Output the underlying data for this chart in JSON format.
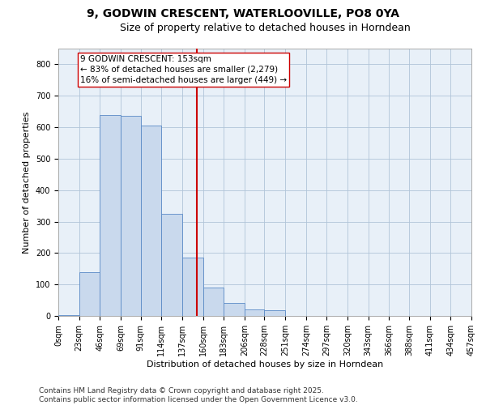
{
  "title_line1": "9, GODWIN CRESCENT, WATERLOOVILLE, PO8 0YA",
  "title_line2": "Size of property relative to detached houses in Horndean",
  "xlabel": "Distribution of detached houses by size in Horndean",
  "ylabel": "Number of detached properties",
  "bins": [
    "0sqm",
    "23sqm",
    "46sqm",
    "69sqm",
    "91sqm",
    "114sqm",
    "137sqm",
    "160sqm",
    "183sqm",
    "206sqm",
    "228sqm",
    "251sqm",
    "274sqm",
    "297sqm",
    "320sqm",
    "343sqm",
    "366sqm",
    "388sqm",
    "411sqm",
    "434sqm",
    "457sqm"
  ],
  "bin_edges": [
    0,
    23,
    46,
    69,
    91,
    114,
    137,
    160,
    183,
    206,
    228,
    251,
    274,
    297,
    320,
    343,
    366,
    388,
    411,
    434,
    457
  ],
  "bar_heights": [
    2,
    140,
    640,
    635,
    605,
    325,
    185,
    90,
    42,
    20,
    18,
    0,
    0,
    0,
    0,
    0,
    0,
    0,
    0,
    0
  ],
  "bar_color": "#c9d9ed",
  "bar_edge_color": "#5a8ac6",
  "vline_x": 153,
  "vline_color": "#cc0000",
  "annotation_text": "9 GODWIN CRESCENT: 153sqm\n← 83% of detached houses are smaller (2,279)\n16% of semi-detached houses are larger (449) →",
  "annotation_box_color": "#ffffff",
  "annotation_box_edge": "#cc0000",
  "ylim": [
    0,
    850
  ],
  "yticks": [
    0,
    100,
    200,
    300,
    400,
    500,
    600,
    700,
    800
  ],
  "grid_color": "#b0c4d8",
  "bg_color": "#e8f0f8",
  "footer": "Contains HM Land Registry data © Crown copyright and database right 2025.\nContains public sector information licensed under the Open Government Licence v3.0.",
  "title_fontsize": 10,
  "subtitle_fontsize": 9,
  "axis_label_fontsize": 8,
  "tick_fontsize": 7,
  "annotation_fontsize": 7.5,
  "footer_fontsize": 6.5
}
